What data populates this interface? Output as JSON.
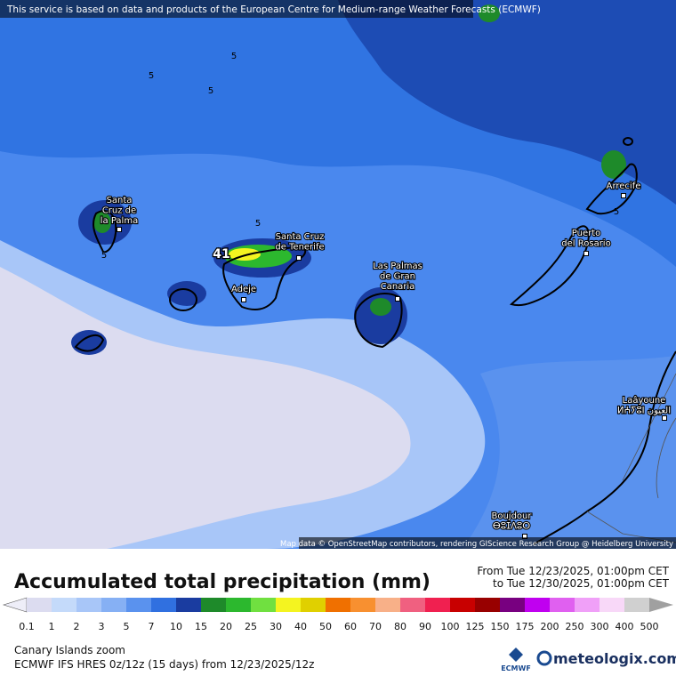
{
  "banner": "This service is based on data and products of the European Centre for Medium-range Weather Forecasts (ECMWF)",
  "map": {
    "places": [
      {
        "lines": [
          "Santa",
          "Cruz de",
          "la Palma"
        ]
      },
      {
        "lines": [
          "Santa Cruz",
          "de Tenerife"
        ]
      },
      {
        "lines": [
          "Adeje"
        ]
      },
      {
        "lines": [
          "Las Palmas",
          "de Gran",
          "Canaria"
        ]
      },
      {
        "lines": [
          "Puerto",
          "del Rosario"
        ]
      },
      {
        "lines": [
          "Arrecife"
        ]
      },
      {
        "lines": [
          "Laâyoune",
          "ⵍⵄⵢⵓⵏ العيون"
        ]
      },
      {
        "lines": [
          "Boujdour",
          "ⴱⵓⵊⴷⵓⵔ"
        ]
      }
    ],
    "contour_labels": [
      "5",
      "5",
      "5",
      "5",
      "5",
      "5"
    ],
    "max_label": "41",
    "attribution": "Map data © OpenStreetMap contributors, rendering GIScience Research Group @ Heidelberg University"
  },
  "legend": {
    "title": "Accumulated total precipitation (mm)",
    "period_from": "From Tue 12/23/2025, 01:00pm CET",
    "period_to": "to Tue 12/30/2025, 01:00pm CET",
    "labels": [
      "0.1",
      "1",
      "2",
      "3",
      "5",
      "7",
      "10",
      "15",
      "20",
      "25",
      "30",
      "40",
      "50",
      "60",
      "70",
      "80",
      "90",
      "100",
      "125",
      "150",
      "175",
      "200",
      "250",
      "300",
      "400",
      "500"
    ],
    "colors": [
      "#dcdcf0",
      "#c4dafa",
      "#a8c6f8",
      "#86b0f4",
      "#5a92ee",
      "#3070e0",
      "#1a3ca0",
      "#1e8a2a",
      "#2cb82e",
      "#70e040",
      "#f4f420",
      "#e0d000",
      "#f07000",
      "#f89030",
      "#f8b088",
      "#f06080",
      "#f02050",
      "#c80000",
      "#980000",
      "#780080",
      "#c000f0",
      "#e060f0",
      "#f0a0f8",
      "#f8d8f8",
      "#d0d0d0"
    ],
    "arrow_low": "#eeeef8",
    "arrow_high": "#a0a0a0"
  },
  "footer": {
    "region": "Canary Islands zoom",
    "model": "ECMWF IFS HRES 0z/12z (15 days) from  12/23/2025/12z",
    "ecmwf": "ECMWF",
    "brand": "meteologix.com"
  }
}
